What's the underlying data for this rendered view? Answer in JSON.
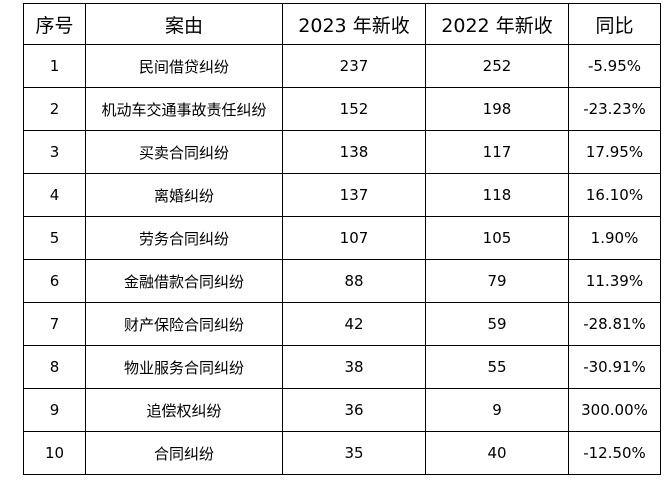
{
  "table": {
    "headers": {
      "index": "序号",
      "cause": "案由",
      "y2023": "2023 年新收",
      "y2022": "2022 年新收",
      "yoy": "同比"
    },
    "rows": [
      {
        "index": "1",
        "cause": "民间借贷纠纷",
        "y2023": "237",
        "y2022": "252",
        "yoy": "-5.95%"
      },
      {
        "index": "2",
        "cause": "机动车交通事故责任纠纷",
        "y2023": "152",
        "y2022": "198",
        "yoy": "-23.23%"
      },
      {
        "index": "3",
        "cause": "买卖合同纠纷",
        "y2023": "138",
        "y2022": "117",
        "yoy": "17.95%"
      },
      {
        "index": "4",
        "cause": "离婚纠纷",
        "y2023": "137",
        "y2022": "118",
        "yoy": "16.10%"
      },
      {
        "index": "5",
        "cause": "劳务合同纠纷",
        "y2023": "107",
        "y2022": "105",
        "yoy": "1.90%"
      },
      {
        "index": "6",
        "cause": "金融借款合同纠纷",
        "y2023": "88",
        "y2022": "79",
        "yoy": "11.39%"
      },
      {
        "index": "7",
        "cause": "财产保险合同纠纷",
        "y2023": "42",
        "y2022": "59",
        "yoy": "-28.81%"
      },
      {
        "index": "8",
        "cause": "物业服务合同纠纷",
        "y2023": "38",
        "y2022": "55",
        "yoy": "-30.91%"
      },
      {
        "index": "9",
        "cause": "追偿权纠纷",
        "y2023": "36",
        "y2022": "9",
        "yoy": "300.00%"
      },
      {
        "index": "10",
        "cause": "合同纠纷",
        "y2023": "35",
        "y2022": "40",
        "yoy": "-12.50%"
      }
    ]
  }
}
